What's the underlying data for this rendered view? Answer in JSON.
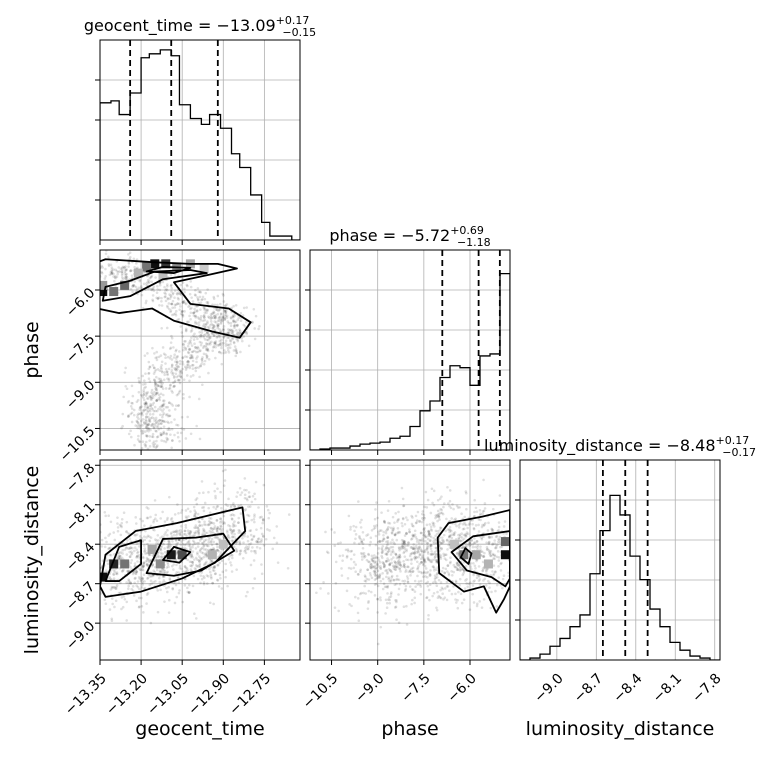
{
  "chart_data": {
    "type": "corner",
    "grid": true,
    "parameters": [
      "geocent_time",
      "phase",
      "luminosity_distance"
    ],
    "titles": [
      {
        "param": "geocent_time",
        "label": "geocent_time",
        "eq": " = ",
        "median": "−13.09",
        "plus": "+0.17",
        "minus": "−0.15"
      },
      {
        "param": "phase",
        "label": "phase",
        "eq": " = ",
        "median": "−5.72",
        "plus": "+0.69",
        "minus": "−1.18"
      },
      {
        "param": "luminosity_distance",
        "label": "luminosity_distance",
        "eq": " = ",
        "median": "−8.48",
        "plus": "+0.17",
        "minus": "−0.17"
      }
    ],
    "ranges": {
      "geocent_time": [
        -13.35,
        -12.62
      ],
      "phase": [
        -11.2,
        -4.7
      ],
      "luminosity_distance": [
        -9.28,
        -7.76
      ]
    },
    "ticks": {
      "geocent_time": [
        -13.35,
        -13.2,
        -13.05,
        -12.9,
        -12.75
      ],
      "phase": [
        -10.5,
        -9.0,
        -7.5,
        -6.0
      ],
      "luminosity_distance": [
        -9.0,
        -8.7,
        -8.4,
        -8.1,
        -7.8
      ]
    },
    "tick_labels": {
      "geocent_time": [
        "−13.35",
        "−13.20",
        "−13.05",
        "−12.90",
        "−12.75"
      ],
      "phase": [
        "−10.5",
        "−9.0",
        "−7.5",
        "−6.0"
      ],
      "luminosity_distance": [
        "−9.0",
        "−8.7",
        "−8.4",
        "−8.1",
        "−7.8"
      ]
    },
    "histograms": {
      "geocent_time": {
        "edges": [
          -13.35,
          -13.31,
          -13.28,
          -13.24,
          -13.2,
          -13.17,
          -13.13,
          -13.09,
          -13.06,
          -13.02,
          -12.98,
          -12.95,
          -12.91,
          -12.87,
          -12.84,
          -12.8,
          -12.76,
          -12.73,
          -12.69,
          -12.65,
          -12.62
        ],
        "counts": [
          0.7,
          0.71,
          0.64,
          0.75,
          0.93,
          0.95,
          0.97,
          0.94,
          0.69,
          0.62,
          0.59,
          0.64,
          0.57,
          0.44,
          0.37,
          0.23,
          0.09,
          0.02,
          0.02,
          0.0
        ]
      },
      "phase": {
        "edges": [
          -11.2,
          -10.875,
          -10.55,
          -10.225,
          -9.9,
          -9.575,
          -9.25,
          -8.925,
          -8.6,
          -8.275,
          -7.95,
          -7.625,
          -7.3,
          -6.975,
          -6.65,
          -6.325,
          -6.0,
          -5.675,
          -5.35,
          -5.025,
          -4.7
        ],
        "counts": [
          0.0,
          0.005,
          0.01,
          0.01,
          0.02,
          0.03,
          0.035,
          0.04,
          0.06,
          0.07,
          0.12,
          0.2,
          0.25,
          0.37,
          0.43,
          0.42,
          0.33,
          0.48,
          0.49,
          0.9
        ]
      },
      "luminosity_distance": {
        "edges": [
          -9.28,
          -9.204,
          -9.128,
          -9.052,
          -8.976,
          -8.9,
          -8.824,
          -8.748,
          -8.672,
          -8.596,
          -8.52,
          -8.444,
          -8.368,
          -8.292,
          -8.216,
          -8.14,
          -8.064,
          -7.988,
          -7.912,
          -7.836,
          -7.76
        ],
        "counts": [
          0.0,
          0.01,
          0.03,
          0.07,
          0.11,
          0.17,
          0.23,
          0.44,
          0.66,
          0.84,
          0.74,
          0.53,
          0.41,
          0.26,
          0.17,
          0.09,
          0.05,
          0.02,
          0.01,
          0.0
        ]
      }
    },
    "quantiles": {
      "geocent_time": [
        -13.24,
        -13.09,
        -12.92
      ],
      "phase": [
        -6.9,
        -5.72,
        -5.03
      ],
      "luminosity_distance": [
        -8.65,
        -8.48,
        -8.31
      ]
    },
    "pairs": [
      {
        "x": "geocent_time",
        "y": "phase",
        "contours": [
          [
            [
              -13.33,
              -5.0
            ],
            [
              -13.15,
              -5.1
            ],
            [
              -13.02,
              -5.15
            ],
            [
              -12.92,
              -5.15
            ],
            [
              -12.85,
              -5.3
            ],
            [
              -12.95,
              -5.5
            ],
            [
              -13.08,
              -5.75
            ],
            [
              -13.02,
              -6.45
            ],
            [
              -12.88,
              -6.6
            ],
            [
              -12.8,
              -7.05
            ],
            [
              -12.84,
              -7.55
            ],
            [
              -12.94,
              -7.35
            ],
            [
              -13.08,
              -7.0
            ],
            [
              -13.16,
              -6.6
            ],
            [
              -13.28,
              -6.75
            ],
            [
              -13.36,
              -6.6
            ],
            [
              -13.36,
              -5.1
            ]
          ],
          [
            [
              -13.33,
              -5.9
            ],
            [
              -13.24,
              -5.7
            ],
            [
              -13.15,
              -5.4
            ],
            [
              -13.02,
              -5.35
            ],
            [
              -12.96,
              -5.45
            ],
            [
              -13.12,
              -5.65
            ],
            [
              -13.24,
              -6.2
            ],
            [
              -13.34,
              -6.35
            ]
          ],
          [
            [
              -13.18,
              -5.4
            ],
            [
              -13.12,
              -5.25
            ],
            [
              -13.02,
              -5.28
            ],
            [
              -13.08,
              -5.45
            ]
          ]
        ],
        "points": {
          "seed": 11,
          "n": 1300,
          "curve": [
            [
              -13.34,
              -5.2
            ],
            [
              -13.2,
              -5.6
            ],
            [
              -13.06,
              -6.35
            ],
            [
              -12.92,
              -6.85
            ],
            [
              -12.86,
              -7.35
            ],
            [
              -12.98,
              -7.8
            ],
            [
              -13.08,
              -8.5
            ],
            [
              -13.15,
              -9.3
            ],
            [
              -13.17,
              -10.2
            ],
            [
              -13.12,
              -10.9
            ]
          ],
          "spread": [
            0.05,
            0.3
          ]
        },
        "cells": [
          {
            "x": -13.34,
            "y": -6.05,
            "v": 0.95
          },
          {
            "x": -13.3,
            "y": -6.05,
            "v": 0.55
          },
          {
            "x": -13.26,
            "y": -5.85,
            "v": 0.6
          },
          {
            "x": -13.34,
            "y": -5.85,
            "v": 0.4
          },
          {
            "x": -13.15,
            "y": -5.15,
            "v": 0.95
          },
          {
            "x": -13.11,
            "y": -5.15,
            "v": 0.8
          },
          {
            "x": -13.18,
            "y": -5.25,
            "v": 0.55
          },
          {
            "x": -13.07,
            "y": -5.25,
            "v": 0.45
          },
          {
            "x": -13.02,
            "y": -5.15,
            "v": 0.35
          },
          {
            "x": -13.21,
            "y": -5.45,
            "v": 0.3
          },
          {
            "x": -12.97,
            "y": -5.3,
            "v": 0.2
          },
          {
            "x": -13.12,
            "y": -5.55,
            "v": 0.25
          }
        ]
      },
      {
        "x": "geocent_time",
        "y": "luminosity_distance",
        "contours": [
          [
            [
              -13.35,
              -8.72
            ],
            [
              -13.33,
              -8.48
            ],
            [
              -13.22,
              -8.3
            ],
            [
              -13.07,
              -8.24
            ],
            [
              -12.95,
              -8.18
            ],
            [
              -12.83,
              -8.12
            ],
            [
              -12.82,
              -8.3
            ],
            [
              -12.93,
              -8.54
            ],
            [
              -13.05,
              -8.66
            ],
            [
              -13.2,
              -8.76
            ],
            [
              -13.33,
              -8.8
            ]
          ],
          [
            [
              -13.33,
              -8.68
            ],
            [
              -13.28,
              -8.42
            ],
            [
              -13.2,
              -8.37
            ],
            [
              -13.2,
              -8.55
            ],
            [
              -13.28,
              -8.68
            ]
          ],
          [
            [
              -13.18,
              -8.62
            ],
            [
              -13.12,
              -8.36
            ],
            [
              -13.0,
              -8.35
            ],
            [
              -12.9,
              -8.32
            ],
            [
              -12.86,
              -8.45
            ],
            [
              -12.98,
              -8.6
            ],
            [
              -13.08,
              -8.64
            ]
          ],
          [
            [
              -13.12,
              -8.52
            ],
            [
              -13.08,
              -8.42
            ],
            [
              -13.02,
              -8.46
            ],
            [
              -13.06,
              -8.54
            ]
          ]
        ],
        "points": {
          "seed": 23,
          "n": 1300,
          "curve": [
            [
              -13.33,
              -8.62
            ],
            [
              -13.2,
              -8.52
            ],
            [
              -13.05,
              -8.47
            ],
            [
              -12.92,
              -8.38
            ],
            [
              -12.82,
              -8.25
            ]
          ],
          "spread": [
            0.07,
            0.16
          ]
        },
        "cells": [
          {
            "x": -13.34,
            "y": -8.65,
            "v": 0.95
          },
          {
            "x": -13.3,
            "y": -8.55,
            "v": 0.85
          },
          {
            "x": -13.26,
            "y": -8.55,
            "v": 0.55
          },
          {
            "x": -13.09,
            "y": -8.48,
            "v": 0.9
          },
          {
            "x": -13.05,
            "y": -8.48,
            "v": 0.7
          },
          {
            "x": -13.13,
            "y": -8.55,
            "v": 0.45
          },
          {
            "x": -12.94,
            "y": -8.48,
            "v": 0.3
          },
          {
            "x": -12.9,
            "y": -8.4,
            "v": 0.25
          },
          {
            "x": -13.16,
            "y": -8.44,
            "v": 0.35
          }
        ]
      },
      {
        "x": "phase",
        "y": "luminosity_distance",
        "contours": [
          [
            [
              -4.7,
              -8.14
            ],
            [
              -5.6,
              -8.19
            ],
            [
              -6.7,
              -8.24
            ],
            [
              -7.05,
              -8.35
            ],
            [
              -7.0,
              -8.62
            ],
            [
              -6.2,
              -8.76
            ],
            [
              -5.55,
              -8.72
            ],
            [
              -5.15,
              -8.92
            ],
            [
              -4.9,
              -8.82
            ],
            [
              -4.7,
              -8.72
            ]
          ],
          [
            [
              -4.7,
              -8.3
            ],
            [
              -5.9,
              -8.34
            ],
            [
              -6.6,
              -8.46
            ],
            [
              -6.1,
              -8.6
            ],
            [
              -5.3,
              -8.65
            ],
            [
              -4.85,
              -8.72
            ],
            [
              -4.7,
              -8.66
            ]
          ],
          [
            [
              -6.3,
              -8.5
            ],
            [
              -6.15,
              -8.43
            ],
            [
              -5.95,
              -8.47
            ],
            [
              -6.05,
              -8.55
            ]
          ]
        ],
        "points": {
          "seed": 37,
          "n": 1300,
          "curve": [
            [
              -9.6,
              -8.55
            ],
            [
              -8.5,
              -8.5
            ],
            [
              -7.3,
              -8.45
            ],
            [
              -6.2,
              -8.45
            ],
            [
              -5.1,
              -8.48
            ]
          ],
          "spread": [
            0.6,
            0.18
          ]
        },
        "cells": [
          {
            "x": -4.85,
            "y": -8.48,
            "v": 0.95
          },
          {
            "x": -4.85,
            "y": -8.38,
            "v": 0.6
          },
          {
            "x": -6.2,
            "y": -8.48,
            "v": 0.55
          },
          {
            "x": -5.8,
            "y": -8.48,
            "v": 0.35
          },
          {
            "x": -5.4,
            "y": -8.55,
            "v": 0.3
          },
          {
            "x": -6.5,
            "y": -8.4,
            "v": 0.25
          }
        ]
      }
    ]
  }
}
